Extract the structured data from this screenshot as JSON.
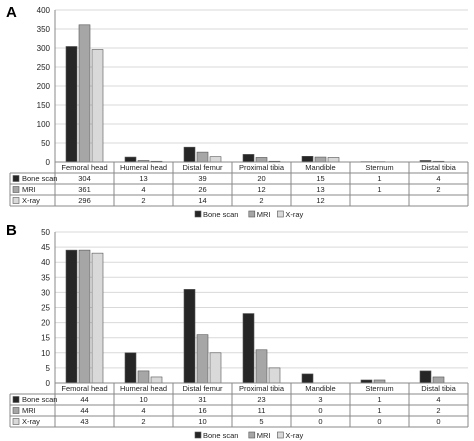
{
  "colors": {
    "bone_scan": "#262626",
    "mri": "#a6a6a6",
    "xray": "#d9d9d9",
    "gridline": "#d9d9d9",
    "axis": "#888888"
  },
  "icons": {
    "swatch": "square-swatch-icon"
  },
  "chart_data": [
    {
      "panel_label": "A",
      "type": "bar",
      "categories": [
        "Femoral head",
        "Humeral head",
        "Distal femur",
        "Proximal tibia",
        "Mandible",
        "Sternum",
        "Distal tibia"
      ],
      "series": [
        {
          "name": "Bone scan",
          "values": [
            304,
            13,
            39,
            20,
            15,
            1,
            4
          ],
          "table_values": [
            "304",
            "13",
            "39",
            "20",
            "15",
            "1",
            "4"
          ]
        },
        {
          "name": "MRI",
          "values": [
            361,
            4,
            26,
            12,
            13,
            1,
            2
          ],
          "table_values": [
            "361",
            "4",
            "26",
            "12",
            "13",
            "1",
            "2"
          ]
        },
        {
          "name": "X-ray",
          "values": [
            296,
            2,
            14,
            2,
            12,
            0,
            0
          ],
          "table_values": [
            "296",
            "2",
            "14",
            "2",
            "12",
            "",
            ""
          ]
        }
      ],
      "ylim": [
        0,
        400
      ],
      "yticks": [
        "0",
        "50",
        "100",
        "150",
        "200",
        "250",
        "300",
        "350",
        "400"
      ],
      "grid": true,
      "legend_placement": "bottom-center"
    },
    {
      "panel_label": "B",
      "type": "bar",
      "categories": [
        "Femoral head",
        "Humeral head",
        "Distal femur",
        "Proximal tibia",
        "Mandible",
        "Sternum",
        "Distal tibia"
      ],
      "series": [
        {
          "name": "Bone scan",
          "values": [
            44,
            10,
            31,
            23,
            3,
            1,
            4
          ],
          "table_values": [
            "44",
            "10",
            "31",
            "23",
            "3",
            "1",
            "4"
          ]
        },
        {
          "name": "MRI",
          "values": [
            44,
            4,
            16,
            11,
            0,
            1,
            2
          ],
          "table_values": [
            "44",
            "4",
            "16",
            "11",
            "0",
            "1",
            "2"
          ]
        },
        {
          "name": "X-ray",
          "values": [
            43,
            2,
            10,
            5,
            0,
            0,
            0
          ],
          "table_values": [
            "43",
            "2",
            "10",
            "5",
            "0",
            "0",
            "0"
          ]
        }
      ],
      "ylim": [
        0,
        50
      ],
      "yticks": [
        "0",
        "5",
        "10",
        "15",
        "20",
        "25",
        "30",
        "35",
        "40",
        "45",
        "50"
      ],
      "grid": true,
      "legend_placement": "bottom-center"
    }
  ]
}
